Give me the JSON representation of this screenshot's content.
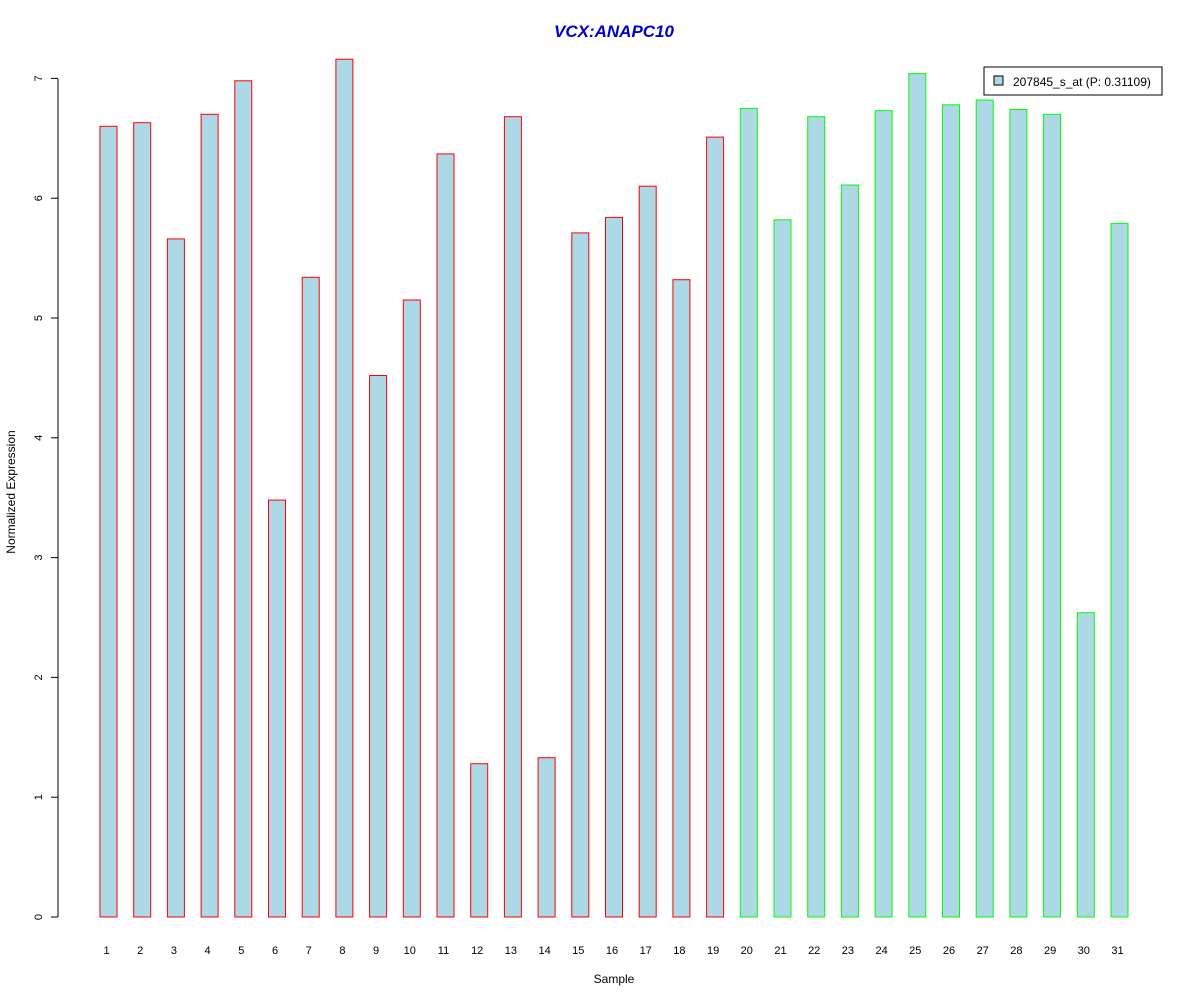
{
  "chart_data": {
    "type": "bar",
    "title": "VCX:ANAPC10",
    "xlabel": "Sample",
    "ylabel": "Normalized Expression",
    "categories": [
      "1",
      "2",
      "3",
      "4",
      "5",
      "6",
      "7",
      "8",
      "9",
      "10",
      "11",
      "12",
      "13",
      "14",
      "15",
      "16",
      "17",
      "18",
      "19",
      "20",
      "21",
      "22",
      "23",
      "24",
      "25",
      "26",
      "27",
      "28",
      "29",
      "30",
      "31"
    ],
    "series": [
      {
        "name": "207845_s_at (P: 0.31109)",
        "values": [
          6.6,
          6.63,
          5.66,
          6.7,
          6.98,
          3.48,
          5.34,
          7.16,
          4.52,
          5.15,
          6.37,
          1.28,
          6.68,
          1.33,
          5.71,
          5.84,
          6.1,
          5.32,
          6.51,
          6.75,
          5.82,
          6.68,
          6.11,
          6.73,
          7.04,
          6.78,
          6.82,
          6.74,
          6.7,
          2.54,
          5.79
        ]
      }
    ],
    "groups": [
      1,
      1,
      1,
      1,
      1,
      1,
      1,
      1,
      1,
      1,
      1,
      1,
      1,
      1,
      1,
      1,
      1,
      1,
      1,
      2,
      2,
      2,
      2,
      2,
      2,
      2,
      2,
      2,
      2,
      2,
      2
    ],
    "yticks": [
      0,
      1,
      2,
      3,
      4,
      5,
      6,
      7
    ],
    "ylim": [
      0,
      7.3
    ],
    "legend_position": "top-right",
    "colors": {
      "bar_fill": "#ADD8E6",
      "group1_border": "#FF0000",
      "group2_border": "#00FF00",
      "title": "#0000CC"
    },
    "grid": false
  }
}
